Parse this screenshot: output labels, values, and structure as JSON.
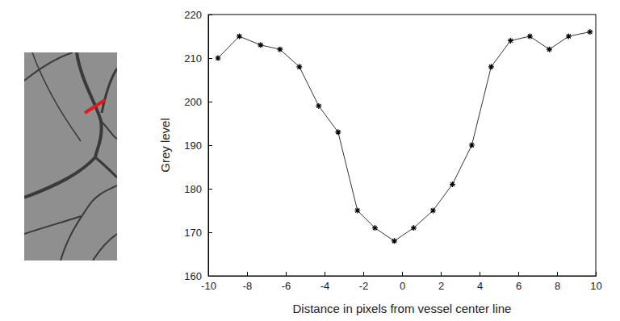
{
  "chart_data": {
    "type": "line",
    "x_label": "Distance in pixels from vessel center line",
    "y_label": "Grey level",
    "x": [
      -9.5,
      -8.4,
      -7.3,
      -6.3,
      -5.3,
      -4.3,
      -3.3,
      -2.3,
      -1.4,
      -0.4,
      0.6,
      1.6,
      2.6,
      3.6,
      4.6,
      5.6,
      6.6,
      7.6,
      8.6,
      9.7
    ],
    "series": [
      {
        "color": "#000000",
        "marker": "asterisk",
        "line_style": "solid",
        "values": [
          210,
          215,
          213,
          212,
          208,
          199,
          193,
          175,
          171,
          168,
          171,
          175,
          181,
          190,
          208,
          214,
          215,
          212,
          215,
          216
        ]
      }
    ],
    "xlim": [
      -10,
      10
    ],
    "ylim": [
      160,
      220
    ],
    "xticks": [
      -10,
      -8,
      -6,
      -4,
      -2,
      0,
      2,
      4,
      6,
      8,
      10
    ],
    "yticks": [
      160,
      170,
      180,
      190,
      200,
      210,
      220
    ]
  }
}
